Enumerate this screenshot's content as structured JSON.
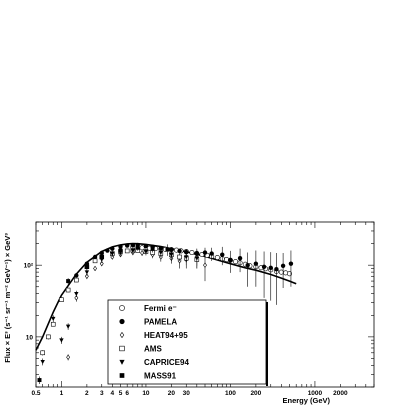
{
  "chart_data": {
    "type": "scatter",
    "title": "",
    "xlabel": "Energy (GeV)",
    "ylabel": "Flux × E³ (s⁻¹ sr⁻¹ m⁻² GeV⁻¹) × GeV³",
    "xscale": "log",
    "yscale": "log",
    "xlim": [
      0.5,
      5000
    ],
    "ylim": [
      2,
      400
    ],
    "x_ticks": [
      {
        "v": 0.5,
        "t": "0.5"
      },
      {
        "v": 1,
        "t": "1"
      },
      {
        "v": 2,
        "t": "2"
      },
      {
        "v": 3,
        "t": "3"
      },
      {
        "v": 4,
        "t": "4"
      },
      {
        "v": 5,
        "t": "5"
      },
      {
        "v": 6,
        "t": "6"
      },
      {
        "v": 10,
        "t": "10"
      },
      {
        "v": 20,
        "t": "20"
      },
      {
        "v": 30,
        "t": "30"
      },
      {
        "v": 100,
        "t": "100"
      },
      {
        "v": 200,
        "t": "200"
      },
      {
        "v": 1000,
        "t": "1000"
      },
      {
        "v": 2000,
        "t": "2000"
      }
    ],
    "y_ticks": [
      {
        "v": 10,
        "t": "10"
      },
      {
        "v": 100,
        "t": "10²"
      }
    ],
    "legend": {
      "position": "inside lower-middle",
      "entries": [
        {
          "name": "Fermi e⁻",
          "marker": "open-circle"
        },
        {
          "name": "PAMELA",
          "marker": "filled-circle"
        },
        {
          "name": "HEAT94+95",
          "marker": "open-diamond"
        },
        {
          "name": "AMS",
          "marker": "open-square"
        },
        {
          "name": "CAPRICE94",
          "marker": "filled-triangle-down"
        },
        {
          "name": "MASS91",
          "marker": "filled-square"
        }
      ]
    },
    "model_curve": {
      "x": [
        0.5,
        0.6,
        0.8,
        1,
        1.5,
        2,
        3,
        4,
        5,
        6,
        7,
        8,
        10,
        15,
        20,
        30,
        50,
        80,
        100,
        150,
        200,
        300,
        400,
        500,
        600
      ],
      "y": [
        6.5,
        10,
        22,
        38,
        75,
        110,
        155,
        180,
        192,
        198,
        200,
        199,
        195,
        182,
        170,
        153,
        133,
        113,
        105,
        92,
        85,
        74,
        66,
        60,
        55
      ]
    },
    "series": [
      {
        "name": "Fermi e⁻",
        "marker": "open-circle",
        "x": [
          7,
          9,
          11,
          13,
          15,
          17,
          20,
          23,
          26,
          30,
          35,
          40,
          46,
          53,
          60,
          70,
          80,
          90,
          100,
          115,
          130,
          150,
          170,
          200,
          230,
          260,
          300,
          350,
          400,
          450,
          500
        ],
        "y": [
          178,
          175,
          172,
          170,
          168,
          166,
          165,
          162,
          158,
          155,
          150,
          146,
          141,
          137,
          133,
          128,
          123,
          120,
          117,
          112,
          108,
          103,
          98,
          95,
          92,
          89,
          86,
          82,
          80,
          78,
          76
        ]
      },
      {
        "name": "PAMELA",
        "marker": "filled-circle",
        "x": [
          1.5,
          2,
          2.5,
          3,
          3.5,
          4,
          5,
          6,
          7,
          8,
          10,
          12,
          15,
          20,
          25,
          30,
          40,
          50,
          60,
          80,
          100,
          130,
          160,
          200,
          250,
          300,
          350,
          420,
          520
        ],
        "y": [
          72,
          105,
          130,
          148,
          160,
          170,
          182,
          188,
          190,
          191,
          185,
          180,
          172,
          165,
          158,
          152,
          145,
          150,
          145,
          140,
          118,
          125,
          100,
          105,
          95,
          92,
          88,
          98,
          105
        ],
        "yerr": [
          5,
          6,
          7,
          8,
          8,
          8,
          9,
          9,
          9,
          10,
          10,
          10,
          10,
          12,
          12,
          14,
          20,
          25,
          30,
          40,
          40,
          45,
          50,
          55,
          60,
          60,
          60,
          50,
          55
        ]
      },
      {
        "name": "HEAT94+95",
        "marker": "open-diamond",
        "x": [
          1.2,
          1.5,
          2,
          2.5,
          3,
          4,
          5,
          7,
          9,
          12,
          15,
          20,
          25,
          30,
          40,
          50
        ],
        "y": [
          5.2,
          35,
          70,
          90,
          105,
          130,
          140,
          150,
          148,
          140,
          130,
          125,
          115,
          120,
          130,
          100
        ],
        "yerr": [
          0.5,
          4,
          6,
          7,
          8,
          10,
          10,
          12,
          14,
          15,
          18,
          20,
          25,
          30,
          40,
          40
        ]
      },
      {
        "name": "AMS",
        "marker": "open-square",
        "x": [
          0.6,
          0.7,
          0.8,
          1.0,
          1.2,
          1.5,
          2,
          2.5,
          3,
          4,
          5,
          6,
          7,
          8,
          10,
          12,
          15,
          20,
          25,
          30,
          40
        ],
        "y": [
          6,
          10,
          15,
          33,
          45,
          62,
          95,
          115,
          130,
          145,
          155,
          158,
          162,
          160,
          155,
          150,
          145,
          140,
          130,
          125,
          120
        ],
        "yerr": [
          0.5,
          0.8,
          1,
          2,
          3,
          4,
          5,
          6,
          7,
          8,
          8,
          9,
          9,
          10,
          10,
          11,
          12,
          14,
          16,
          18,
          22
        ]
      },
      {
        "name": "CAPRICE94",
        "marker": "filled-triangle-down",
        "x": [
          0.6,
          0.8,
          1.0,
          1.2,
          1.5,
          2,
          3,
          4,
          5,
          7,
          10,
          15,
          20,
          30,
          40
        ],
        "y": [
          4.5,
          18,
          9,
          14,
          40,
          80,
          120,
          145,
          150,
          160,
          155,
          150,
          140,
          130,
          125
        ],
        "yerr": [
          0.5,
          2,
          1,
          1.5,
          4,
          8,
          12,
          14,
          15,
          16,
          18,
          22,
          25,
          30,
          35
        ]
      },
      {
        "name": "MASS91",
        "marker": "filled-square",
        "x": [
          0.55,
          1.2,
          2,
          3,
          5,
          8,
          12,
          18
        ],
        "y": [
          2.5,
          60,
          95,
          130,
          160,
          175,
          170,
          165
        ],
        "yerr": [
          0.3,
          6,
          8,
          10,
          14,
          16,
          20,
          30
        ]
      }
    ]
  }
}
